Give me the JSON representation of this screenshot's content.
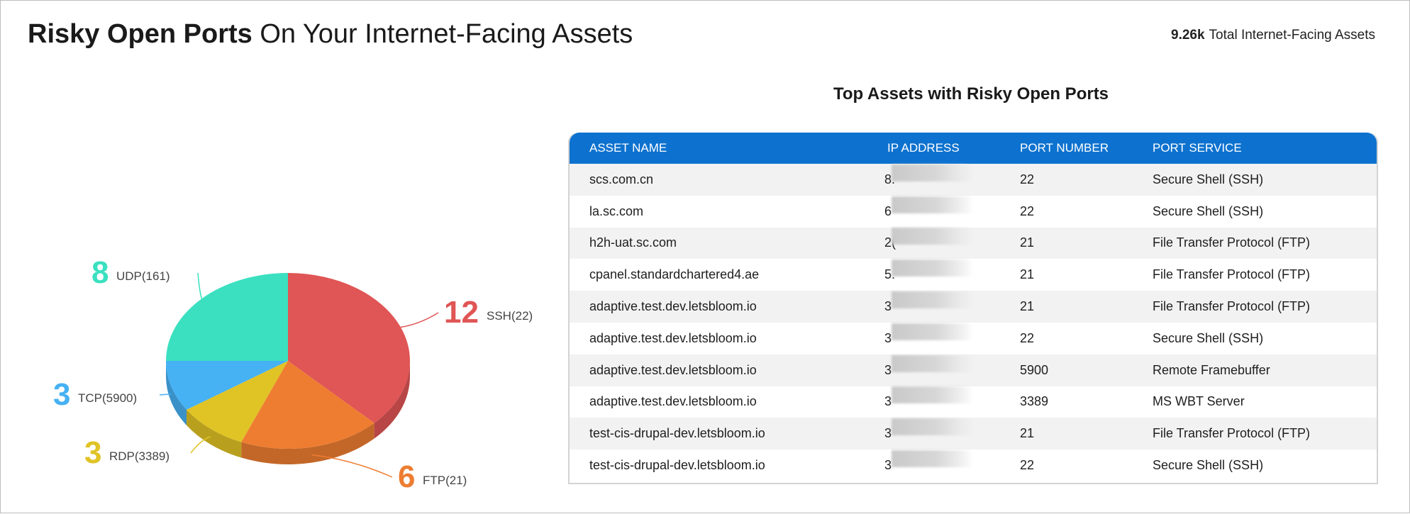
{
  "header": {
    "title_bold": "Risky Open Ports",
    "title_rest": "On Your Internet-Facing Assets",
    "total_value": "9.26k",
    "total_label": "Total Internet-Facing Assets"
  },
  "chart_data": {
    "type": "pie",
    "slices": [
      {
        "label": "SSH(22)",
        "value": 12,
        "color": "#e05555"
      },
      {
        "label": "FTP(21)",
        "value": 6,
        "color": "#ee7d31"
      },
      {
        "label": "RDP(3389)",
        "value": 3,
        "color": "#e0c325"
      },
      {
        "label": "TCP(5900)",
        "value": 3,
        "color": "#46b1f3"
      },
      {
        "label": "UDP(161)",
        "value": 8,
        "color": "#3be0c0"
      }
    ]
  },
  "table": {
    "title": "Top Assets with Risky Open Ports",
    "headers": [
      "ASSET NAME",
      "IP ADDRESS",
      "PORT NUMBER",
      "PORT SERVICE"
    ],
    "rows": [
      {
        "asset": "scs.com.cn",
        "ip": "8.",
        "port": "22",
        "service": "Secure Shell (SSH)"
      },
      {
        "asset": "la.sc.com",
        "ip": "6",
        "port": "22",
        "service": "Secure Shell (SSH)"
      },
      {
        "asset": "h2h-uat.sc.com",
        "ip": "2(",
        "port": "21",
        "service": "File Transfer Protocol (FTP)"
      },
      {
        "asset": "cpanel.standardchartered4.ae",
        "ip": "5.",
        "port": "21",
        "service": "File Transfer Protocol (FTP)"
      },
      {
        "asset": "adaptive.test.dev.letsbloom.io",
        "ip": "3",
        "port": "21",
        "service": "File Transfer Protocol (FTP)"
      },
      {
        "asset": "adaptive.test.dev.letsbloom.io",
        "ip": "3",
        "port": "22",
        "service": "Secure Shell (SSH)"
      },
      {
        "asset": "adaptive.test.dev.letsbloom.io",
        "ip": "3",
        "port": "5900",
        "service": "Remote Framebuffer"
      },
      {
        "asset": "adaptive.test.dev.letsbloom.io",
        "ip": "3",
        "port": "3389",
        "service": "MS WBT Server"
      },
      {
        "asset": "test-cis-drupal-dev.letsbloom.io",
        "ip": "3",
        "port": "21",
        "service": "File Transfer Protocol (FTP)"
      },
      {
        "asset": "test-cis-drupal-dev.letsbloom.io",
        "ip": "3",
        "port": "22",
        "service": "Secure Shell (SSH)"
      }
    ]
  }
}
